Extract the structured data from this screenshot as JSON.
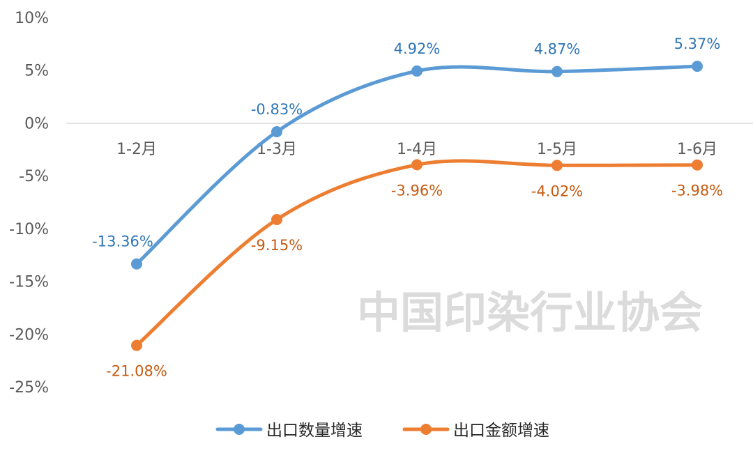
{
  "chart_data": {
    "type": "line",
    "categories": [
      "1-2月",
      "1-3月",
      "1-4月",
      "1-5月",
      "1-6月"
    ],
    "series": [
      {
        "name": "出口数量增速",
        "values": [
          -13.36,
          -0.83,
          4.92,
          4.87,
          5.37
        ],
        "labels": [
          "-13.36%",
          "-0.83%",
          "4.92%",
          "4.87%",
          "5.37%"
        ],
        "color": "#5B9BD5",
        "label_color": "#2E75B6"
      },
      {
        "name": "出口金额增速",
        "values": [
          -21.08,
          -9.15,
          -3.96,
          -4.02,
          -3.98
        ],
        "labels": [
          "-21.08%",
          "-9.15%",
          "-3.96%",
          "-4.02%",
          "-3.98%"
        ],
        "color": "#ED7D31",
        "label_color": "#C55A11"
      }
    ],
    "yticks": [
      "10%",
      "5%",
      "0%",
      "-5%",
      "-10%",
      "-15%",
      "-20%",
      "-25%"
    ],
    "ytick_values": [
      10,
      5,
      0,
      -5,
      -10,
      -15,
      -20,
      -25
    ],
    "ylim": [
      -25,
      10
    ],
    "smooth": true,
    "grid": false,
    "legend": "bottom",
    "watermark": "中国印染行业协会"
  }
}
